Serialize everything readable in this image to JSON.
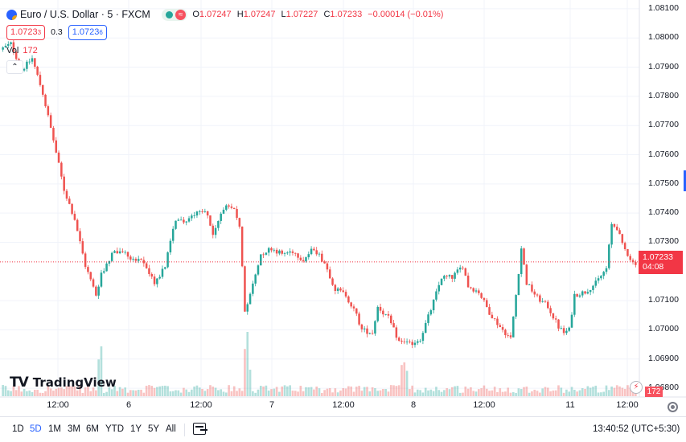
{
  "legend": {
    "symbol": "Euro / U.S. Dollar · 5 · FXCM",
    "status_icon": "≈",
    "ohlc": [
      {
        "key": "O",
        "value": "1.07247"
      },
      {
        "key": "H",
        "value": "1.07247"
      },
      {
        "key": "L",
        "value": "1.07227"
      },
      {
        "key": "C",
        "value": "1.07233"
      }
    ],
    "change": "−0.00014 (−0.01%)",
    "sell_price": "1.0723",
    "sell_sup": "3",
    "spread": "0.3",
    "buy_price": "1.0723",
    "buy_sup": "6",
    "volume_key": "Vol",
    "volume_value": "172",
    "collapse_icon": "chevron-up-icon"
  },
  "watermark": {
    "logo": "TV",
    "text": "TradingView"
  },
  "last_price": {
    "price": "1.07233",
    "countdown": "04:08",
    "color": "#f23645"
  },
  "volume_badge": "172",
  "colors": {
    "up": "#26a69a",
    "down": "#ef5350",
    "grid": "#f0f3fa",
    "price_line": "#f23645"
  },
  "bottom_bar": {
    "ranges": [
      "1D",
      "5D",
      "1M",
      "3M",
      "6M",
      "YTD",
      "1Y",
      "5Y",
      "All"
    ],
    "active_range": "5D",
    "time": "13:40:52 (UTC+5:30)"
  },
  "chart_data": {
    "type": "candlestick",
    "interval": "5",
    "y_ticks": [
      "1.08100",
      "1.08000",
      "1.07900",
      "1.07800",
      "1.07700",
      "1.07600",
      "1.07500",
      "1.07400",
      "1.07300",
      "1.07100",
      "1.07000",
      "1.06900",
      "1.06800"
    ],
    "ylim": [
      1.0677,
      1.0813
    ],
    "x_ticks": [
      "12:00",
      "6",
      "12:00",
      "7",
      "12:00",
      "8",
      "12:00",
      "11",
      "12:00"
    ],
    "series_path": [
      [
        0,
        1.0796
      ],
      [
        4,
        1.0798
      ],
      [
        8,
        1.0789
      ],
      [
        12,
        1.0793
      ],
      [
        16,
        1.0781
      ],
      [
        20,
        1.0765
      ],
      [
        24,
        1.0748
      ],
      [
        28,
        1.0738
      ],
      [
        32,
        1.0722
      ],
      [
        36,
        1.0712
      ],
      [
        38,
        1.0719
      ],
      [
        42,
        1.0726
      ],
      [
        46,
        1.0727
      ],
      [
        50,
        1.0724
      ],
      [
        54,
        1.0723
      ],
      [
        58,
        1.0716
      ],
      [
        62,
        1.0722
      ],
      [
        66,
        1.0738
      ],
      [
        70,
        1.0737
      ],
      [
        74,
        1.0741
      ],
      [
        78,
        1.074
      ],
      [
        80,
        1.0732
      ],
      [
        84,
        1.0742
      ],
      [
        88,
        1.0741
      ],
      [
        90,
        1.0736
      ],
      [
        92,
        1.0707
      ],
      [
        94,
        1.0712
      ],
      [
        98,
        1.0726
      ],
      [
        102,
        1.0728
      ],
      [
        106,
        1.0726
      ],
      [
        110,
        1.0727
      ],
      [
        114,
        1.0724
      ],
      [
        118,
        1.0728
      ],
      [
        122,
        1.0723
      ],
      [
        126,
        1.0714
      ],
      [
        130,
        1.0712
      ],
      [
        134,
        1.0705
      ],
      [
        136,
        1.07
      ],
      [
        140,
        1.0699
      ],
      [
        142,
        1.0708
      ],
      [
        146,
        1.0704
      ],
      [
        150,
        1.0696
      ],
      [
        154,
        1.0695
      ],
      [
        158,
        1.0697
      ],
      [
        162,
        1.0707
      ],
      [
        166,
        1.0718
      ],
      [
        170,
        1.0718
      ],
      [
        174,
        1.0722
      ],
      [
        176,
        1.0715
      ],
      [
        180,
        1.0713
      ],
      [
        184,
        1.0706
      ],
      [
        188,
        1.0701
      ],
      [
        192,
        1.0697
      ],
      [
        194,
        1.0712
      ],
      [
        196,
        1.0728
      ],
      [
        198,
        1.0716
      ],
      [
        202,
        1.0711
      ],
      [
        206,
        1.0708
      ],
      [
        210,
        1.0701
      ],
      [
        212,
        1.0699
      ],
      [
        214,
        1.07
      ],
      [
        216,
        1.0712
      ],
      [
        220,
        1.0713
      ],
      [
        224,
        1.0716
      ],
      [
        228,
        1.0721
      ],
      [
        230,
        1.0736
      ],
      [
        232,
        1.0735
      ],
      [
        234,
        1.0729
      ],
      [
        238,
        1.0723
      ]
    ]
  }
}
